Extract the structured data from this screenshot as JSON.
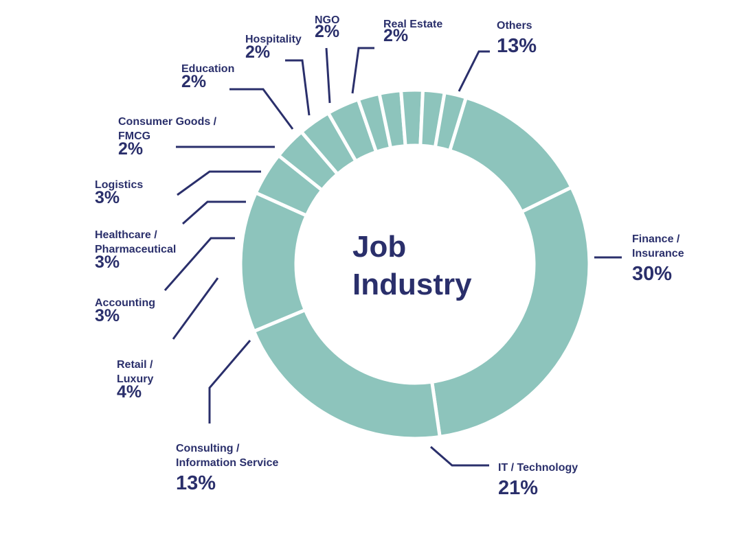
{
  "chart_data": {
    "type": "pie",
    "title": [
      "Job",
      "Industry"
    ],
    "colors": {
      "slice": "#8dc4bc",
      "text": "#2a2f6b",
      "background": "#ffffff"
    },
    "slices": [
      {
        "label": [
          "Others"
        ],
        "value": 13,
        "value_label": "13%"
      },
      {
        "label": [
          "Finance /",
          "Insurance"
        ],
        "value": 30,
        "value_label": "30%"
      },
      {
        "label": [
          "IT / Technology"
        ],
        "value": 21,
        "value_label": "21%"
      },
      {
        "label": [
          "Consulting /",
          "Information Service"
        ],
        "value": 13,
        "value_label": "13%"
      },
      {
        "label": [
          "Retail /",
          "Luxury"
        ],
        "value": 4,
        "value_label": "4%"
      },
      {
        "label": [
          "Accounting"
        ],
        "value": 3,
        "value_label": "3%"
      },
      {
        "label": [
          "Healthcare /",
          "Pharmaceutical"
        ],
        "value": 3,
        "value_label": "3%"
      },
      {
        "label": [
          "Logistics"
        ],
        "value": 3,
        "value_label": "3%"
      },
      {
        "label": [
          "Consumer Goods /",
          "FMCG"
        ],
        "value": 2,
        "value_label": "2%"
      },
      {
        "label": [
          "Education"
        ],
        "value": 2,
        "value_label": "2%"
      },
      {
        "label": [
          "Hospitality"
        ],
        "value": 2,
        "value_label": "2%"
      },
      {
        "label": [
          "NGO"
        ],
        "value": 2,
        "value_label": "2%"
      },
      {
        "label": [
          "Real Estate"
        ],
        "value": 2,
        "value_label": "2%"
      }
    ]
  }
}
